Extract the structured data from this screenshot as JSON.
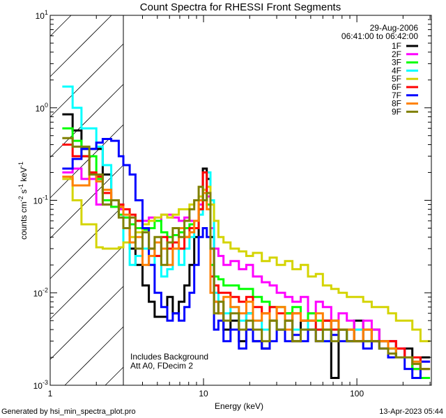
{
  "chart_data": {
    "type": "line",
    "title": "Count Spectra for RHESSI Front Segments",
    "xlabel": "Energy (keV)",
    "ylabel": {
      "base": "counts cm",
      "e1": "-2",
      "s": " s",
      "e2": "-1",
      "k": " keV",
      "e3": "-1"
    },
    "xscale": "log",
    "yscale": "log",
    "xlim": [
      1,
      306
    ],
    "ylim": [
      0.001,
      10
    ],
    "x_ticks": [
      {
        "value": 1,
        "label": "1"
      },
      {
        "value": 10,
        "label": "10"
      },
      {
        "value": 100,
        "label": "100"
      }
    ],
    "y_ticks": [
      {
        "value": 10,
        "base": "10",
        "exp": "1"
      },
      {
        "value": 1,
        "base": "10",
        "exp": "0"
      },
      {
        "value": 0.1,
        "base": "10",
        "exp": "-1"
      },
      {
        "value": 0.01,
        "base": "10",
        "exp": "-2"
      },
      {
        "value": 0.001,
        "base": "10",
        "exp": "-3"
      }
    ],
    "hatched_region_below_keV": 3,
    "legend_placement": "top-right",
    "date": "29-Aug-2006",
    "time_range": "06:41:00 to 06:42:00",
    "annotations": [
      "Includes Background",
      "Att A0, FDecim 2"
    ],
    "energy_edges": [
      1.2,
      1.4,
      1.6,
      1.8,
      2.0,
      2.2,
      2.5,
      2.8,
      3.0,
      3.3,
      3.6,
      4.0,
      4.4,
      4.8,
      5.3,
      5.8,
      6.3,
      6.9,
      7.5,
      8.1,
      8.7,
      9.3,
      9.9,
      10.5,
      11.1,
      11.7,
      12.5,
      13.5,
      15,
      17,
      19,
      21,
      24,
      27,
      30,
      34,
      38,
      43,
      48,
      54,
      60,
      68,
      76,
      86,
      96,
      110,
      125,
      140,
      160,
      180,
      205,
      230,
      260,
      300
    ],
    "series": [
      {
        "name": "1F",
        "color": "#000000",
        "values": [
          0.85,
          0.57,
          0.36,
          0.36,
          0.36,
          0.19,
          0.1,
          0.085,
          0.05,
          0.03,
          0.02,
          0.012,
          0.008,
          0.0055,
          0.0055,
          0.009,
          0.006,
          0.008,
          0.012,
          0.02,
          0.04,
          0.08,
          0.22,
          0.17,
          0.04,
          0.008,
          0.006,
          0.004,
          0.005,
          0.003,
          0.006,
          0.003,
          0.0025,
          0.005,
          0.004,
          0.006,
          0.003,
          0.005,
          0.004,
          0.004,
          0.005,
          0.0012,
          0.004,
          0.003,
          0.005,
          0.003,
          0.004,
          0.003,
          0.003,
          0.002,
          0.0025,
          0.0015,
          0.002
        ]
      },
      {
        "name": "2F",
        "color": "#ff00ff",
        "values": [
          0.2,
          0.22,
          0.17,
          0.17,
          0.09,
          0.09,
          0.085,
          0.08,
          0.065,
          0.055,
          0.06,
          0.06,
          0.065,
          0.06,
          0.07,
          0.07,
          0.065,
          0.06,
          0.065,
          0.06,
          0.06,
          0.09,
          0.13,
          0.11,
          0.05,
          0.03,
          0.025,
          0.02,
          0.022,
          0.018,
          0.02,
          0.015,
          0.013,
          0.012,
          0.01,
          0.009,
          0.008,
          0.009,
          0.006,
          0.008,
          0.007,
          0.005,
          0.006,
          0.005,
          0.004,
          0.005,
          0.004,
          0.003,
          0.003,
          0.0025,
          0.002,
          0.0015,
          0.0018
        ]
      },
      {
        "name": "3F",
        "color": "#00ff00",
        "values": [
          0.6,
          0.44,
          0.3,
          0.3,
          0.17,
          0.1,
          0.085,
          0.07,
          0.065,
          0.055,
          0.05,
          0.048,
          0.05,
          0.06,
          0.045,
          0.04,
          0.042,
          0.045,
          0.05,
          0.055,
          0.06,
          0.1,
          0.12,
          0.09,
          0.02,
          0.015,
          0.014,
          0.012,
          0.012,
          0.011,
          0.011,
          0.009,
          0.008,
          0.007,
          0.007,
          0.006,
          0.007,
          0.005,
          0.006,
          0.005,
          0.004,
          0.005,
          0.004,
          0.004,
          0.003,
          0.004,
          0.003,
          0.003,
          0.0025,
          0.002,
          0.002,
          0.0015,
          0.0012
        ]
      },
      {
        "name": "4F",
        "color": "#00ffff",
        "values": [
          1.7,
          1.0,
          0.6,
          0.6,
          0.38,
          0.24,
          0.1,
          0.09,
          0.035,
          0.02,
          0.025,
          0.03,
          0.02,
          0.025,
          0.015,
          0.018,
          0.03,
          0.02,
          0.03,
          0.04,
          0.05,
          0.07,
          0.12,
          0.2,
          0.1,
          0.01,
          0.008,
          0.006,
          0.007,
          0.005,
          0.006,
          0.005,
          0.004,
          0.005,
          0.004,
          0.005,
          0.004,
          0.004,
          0.005,
          0.004,
          0.003,
          0.004,
          0.004,
          0.003,
          0.004,
          0.003,
          0.003,
          0.003,
          0.0025,
          0.002,
          0.002,
          0.0018,
          0.0015
        ]
      },
      {
        "name": "5F",
        "color": "#d4d400",
        "values": [
          0.17,
          0.1,
          0.055,
          0.055,
          0.031,
          0.03,
          0.03,
          0.031,
          0.035,
          0.04,
          0.045,
          0.055,
          0.06,
          0.065,
          0.07,
          0.065,
          0.07,
          0.08,
          0.08,
          0.09,
          0.1,
          0.11,
          0.13,
          0.14,
          0.09,
          0.06,
          0.04,
          0.035,
          0.03,
          0.028,
          0.025,
          0.027,
          0.022,
          0.024,
          0.02,
          0.022,
          0.018,
          0.02,
          0.015,
          0.016,
          0.012,
          0.011,
          0.01,
          0.009,
          0.009,
          0.008,
          0.007,
          0.007,
          0.006,
          0.005,
          0.005,
          0.004,
          0.003
        ]
      },
      {
        "name": "6F",
        "color": "#ff0000",
        "values": [
          0.4,
          0.3,
          0.3,
          0.2,
          0.18,
          0.12,
          0.1,
          0.09,
          0.08,
          0.07,
          0.06,
          0.05,
          0.03,
          0.025,
          0.04,
          0.03,
          0.035,
          0.03,
          0.04,
          0.05,
          0.05,
          0.08,
          0.2,
          0.12,
          0.015,
          0.012,
          0.01,
          0.01,
          0.009,
          0.008,
          0.009,
          0.007,
          0.006,
          0.007,
          0.006,
          0.005,
          0.006,
          0.005,
          0.005,
          0.004,
          0.005,
          0.004,
          0.004,
          0.004,
          0.003,
          0.004,
          0.003,
          0.003,
          0.003,
          0.0025,
          0.002,
          0.002,
          0.0015
        ]
      },
      {
        "name": "7F",
        "color": "#0000ff",
        "values": [
          0.22,
          0.28,
          0.36,
          0.36,
          0.42,
          0.46,
          0.44,
          0.3,
          0.24,
          0.19,
          0.1,
          0.05,
          0.02,
          0.01,
          0.007,
          0.005,
          0.006,
          0.005,
          0.007,
          0.01,
          0.02,
          0.04,
          0.05,
          0.04,
          0.03,
          0.004,
          0.005,
          0.003,
          0.004,
          0.0025,
          0.004,
          0.003,
          0.0025,
          0.003,
          0.004,
          0.003,
          0.0035,
          0.003,
          0.004,
          0.003,
          0.003,
          0.0035,
          0.003,
          0.003,
          0.003,
          0.0025,
          0.003,
          0.0025,
          0.002,
          0.002,
          0.0015,
          0.0012,
          0.0018
        ]
      },
      {
        "name": "8F",
        "color": "#ff8000",
        "values": [
          0.18,
          0.145,
          0.145,
          0.19,
          0.16,
          0.13,
          0.1,
          0.085,
          0.07,
          0.035,
          0.04,
          0.02,
          0.025,
          0.035,
          0.03,
          0.02,
          0.03,
          0.05,
          0.04,
          0.045,
          0.06,
          0.1,
          0.12,
          0.08,
          0.01,
          0.008,
          0.006,
          0.009,
          0.007,
          0.006,
          0.008,
          0.005,
          0.006,
          0.005,
          0.007,
          0.004,
          0.006,
          0.005,
          0.005,
          0.006,
          0.004,
          0.005,
          0.004,
          0.004,
          0.003,
          0.004,
          0.003,
          0.003,
          0.0025,
          0.002,
          0.002,
          0.0018,
          0.0015
        ]
      },
      {
        "name": "9F",
        "color": "#808000",
        "values": [
          0.47,
          0.38,
          0.38,
          0.19,
          0.19,
          0.09,
          0.1,
          0.065,
          0.05,
          0.065,
          0.03,
          0.045,
          0.03,
          0.04,
          0.02,
          0.035,
          0.05,
          0.04,
          0.06,
          0.08,
          0.1,
          0.14,
          0.1,
          0.12,
          0.03,
          0.006,
          0.008,
          0.005,
          0.006,
          0.004,
          0.005,
          0.004,
          0.003,
          0.005,
          0.004,
          0.005,
          0.003,
          0.004,
          0.004,
          0.003,
          0.004,
          0.003,
          0.004,
          0.003,
          0.003,
          0.003,
          0.003,
          0.0025,
          0.0022,
          0.002,
          0.002,
          0.0017,
          0.0015
        ]
      }
    ]
  },
  "footer": {
    "generated_by": "Generated by hsi_min_spectra_plot.pro",
    "timestamp": "13-Apr-2023 05:44"
  }
}
